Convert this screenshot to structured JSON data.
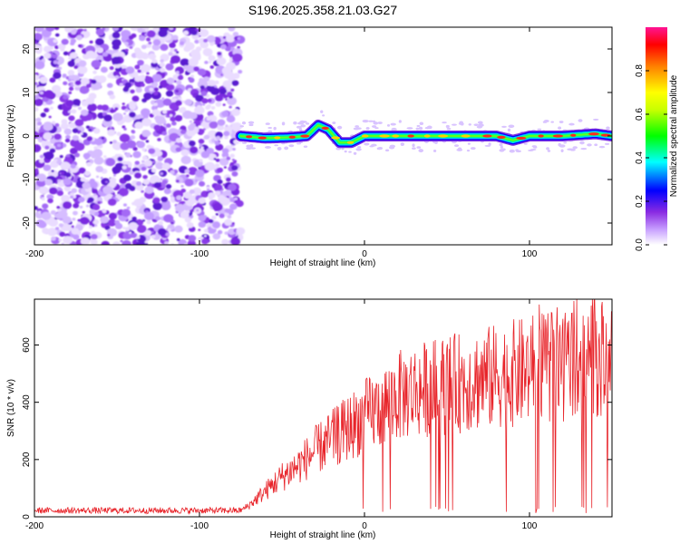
{
  "title": "S196.2025.358.21.03.G27",
  "chart_data": [
    {
      "type": "heatmap",
      "xlabel": "Height of straight line (km)",
      "ylabel": "Frequency (Hz)",
      "xlim": [
        -200,
        150
      ],
      "ylim": [
        -25,
        25
      ],
      "x_ticks": [
        -200,
        -100,
        0,
        100
      ],
      "y_ticks": [
        -20,
        -10,
        0,
        10,
        20
      ],
      "colorbar": {
        "label": "Normalized spectral amplitude",
        "range": [
          0,
          1
        ],
        "ticks": [
          "0.0",
          "0.2",
          "0.4",
          "0.6",
          "0.8"
        ],
        "colors": [
          "#ffffff",
          "#8a2be2",
          "#0000ff",
          "#00ffff",
          "#00ff00",
          "#ffff00",
          "#ff0000",
          "#ff1493"
        ]
      },
      "noise_region_x": [
        -200,
        -75
      ],
      "signal_track": {
        "x": [
          -75,
          -60,
          -45,
          -35,
          -28,
          -22,
          -15,
          -8,
          0,
          20,
          40,
          60,
          80,
          90,
          100,
          120,
          140,
          150
        ],
        "y": [
          0,
          -0.5,
          -0.3,
          0,
          2.5,
          1.5,
          -1.5,
          -1.5,
          0,
          0,
          0,
          0,
          0,
          -1,
          0,
          0,
          0.5,
          0
        ]
      }
    },
    {
      "type": "line",
      "xlabel": "Height of straight line (km)",
      "ylabel": "SNR (10 * v/v)",
      "xlim": [
        -200,
        150
      ],
      "ylim": [
        0,
        760
      ],
      "x_ticks": [
        -200,
        -100,
        0,
        100
      ],
      "y_ticks": [
        0,
        200,
        400,
        600
      ],
      "color": "#e8242a",
      "trend": {
        "x": [
          -200,
          -75,
          -70,
          -60,
          -50,
          -40,
          -30,
          -20,
          -10,
          0,
          10,
          20,
          30,
          40,
          60,
          80,
          100,
          120,
          130,
          140,
          150
        ],
        "y": [
          22,
          22,
          40,
          90,
          140,
          180,
          230,
          270,
          310,
          350,
          380,
          420,
          440,
          450,
          470,
          490,
          510,
          530,
          580,
          560,
          530
        ]
      }
    }
  ]
}
